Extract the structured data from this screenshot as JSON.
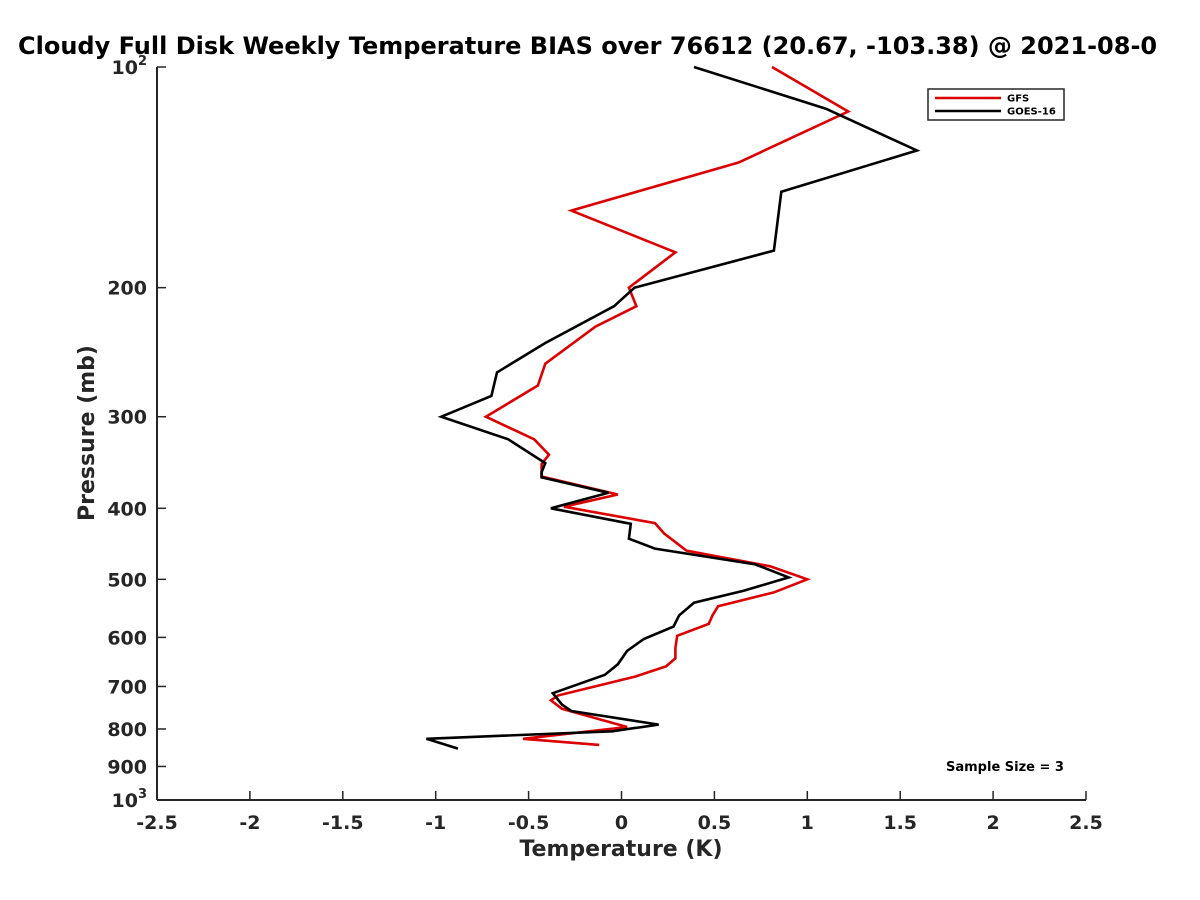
{
  "chart_data": {
    "type": "line",
    "title": "Cloudy Full Disk Weekly Temperature BIAS over 76612 (20.67, -103.38) @ 2021-08-0",
    "xlabel": "Temperature (K)",
    "ylabel": "Pressure (mb)",
    "xlim": [
      -2.5,
      2.5
    ],
    "ylim": [
      100,
      1000
    ],
    "y_scale": "log",
    "y_reversed": true,
    "grid": false,
    "x_ticks": [
      -2.5,
      -2,
      -1.5,
      -1,
      -0.5,
      0,
      0.5,
      1,
      1.5,
      2,
      2.5
    ],
    "x_tick_labels": [
      "-2.5",
      "-2",
      "-1.5",
      "-1",
      "-0.5",
      "0",
      "0.5",
      "1",
      "1.5",
      "2",
      "2.5"
    ],
    "y_ticks": [
      100,
      200,
      300,
      400,
      500,
      600,
      700,
      800,
      900,
      1000
    ],
    "y_tick_labels": [
      {
        "base": "10",
        "exp": "2"
      },
      {
        "base": "200",
        "exp": ""
      },
      {
        "base": "300",
        "exp": ""
      },
      {
        "base": "400",
        "exp": ""
      },
      {
        "base": "500",
        "exp": ""
      },
      {
        "base": "600",
        "exp": ""
      },
      {
        "base": "700",
        "exp": ""
      },
      {
        "base": "800",
        "exp": ""
      },
      {
        "base": "900",
        "exp": ""
      },
      {
        "base": "10",
        "exp": "3"
      }
    ],
    "legend_position": "top-right",
    "annotation": "Sample Size = 3",
    "series": [
      {
        "name": "GFS",
        "color": "#dd0000",
        "points": [
          [
            0.81,
            100
          ],
          [
            1.22,
            115
          ],
          [
            0.63,
            135
          ],
          [
            -0.27,
            157
          ],
          [
            0.29,
            179
          ],
          [
            0.04,
            200
          ],
          [
            0.08,
            212
          ],
          [
            -0.14,
            226
          ],
          [
            -0.41,
            254
          ],
          [
            -0.45,
            272
          ],
          [
            -0.73,
            300
          ],
          [
            -0.47,
            322
          ],
          [
            -0.39,
            338
          ],
          [
            -0.43,
            348
          ],
          [
            -0.43,
            362
          ],
          [
            -0.02,
            383
          ],
          [
            -0.31,
            398
          ],
          [
            0.18,
            419
          ],
          [
            0.23,
            433
          ],
          [
            0.35,
            457
          ],
          [
            0.8,
            480
          ],
          [
            1.0,
            500
          ],
          [
            0.82,
            521
          ],
          [
            0.52,
            544
          ],
          [
            0.49,
            560
          ],
          [
            0.47,
            575
          ],
          [
            0.3,
            597
          ],
          [
            0.29,
            620
          ],
          [
            0.29,
            641
          ],
          [
            0.24,
            657
          ],
          [
            0.07,
            679
          ],
          [
            -0.34,
            720
          ],
          [
            -0.38,
            731
          ],
          [
            -0.32,
            751
          ],
          [
            0.03,
            795
          ],
          [
            -0.53,
            825
          ],
          [
            -0.12,
            841
          ]
        ]
      },
      {
        "name": "GOES-16",
        "color": "#000000",
        "points": [
          [
            0.39,
            100
          ],
          [
            1.1,
            114
          ],
          [
            1.59,
            130
          ],
          [
            0.86,
            148
          ],
          [
            0.82,
            178
          ],
          [
            0.07,
            200
          ],
          [
            -0.04,
            212
          ],
          [
            -0.41,
            238
          ],
          [
            -0.67,
            261
          ],
          [
            -0.7,
            281
          ],
          [
            -0.97,
            300
          ],
          [
            -0.61,
            322
          ],
          [
            -0.41,
            347
          ],
          [
            -0.43,
            357
          ],
          [
            -0.43,
            363
          ],
          [
            -0.07,
            381
          ],
          [
            -0.38,
            400
          ],
          [
            0.05,
            420
          ],
          [
            0.04,
            440
          ],
          [
            0.18,
            454
          ],
          [
            0.72,
            477
          ],
          [
            0.9,
            497
          ],
          [
            0.66,
            518
          ],
          [
            0.39,
            538
          ],
          [
            0.31,
            560
          ],
          [
            0.28,
            580
          ],
          [
            0.12,
            603
          ],
          [
            0.03,
            626
          ],
          [
            -0.02,
            653
          ],
          [
            -0.09,
            675
          ],
          [
            -0.37,
            715
          ],
          [
            -0.32,
            741
          ],
          [
            -0.27,
            756
          ],
          [
            0.2,
            789
          ],
          [
            -0.05,
            806
          ],
          [
            -1.05,
            825
          ],
          [
            -0.88,
            851
          ]
        ]
      }
    ]
  }
}
